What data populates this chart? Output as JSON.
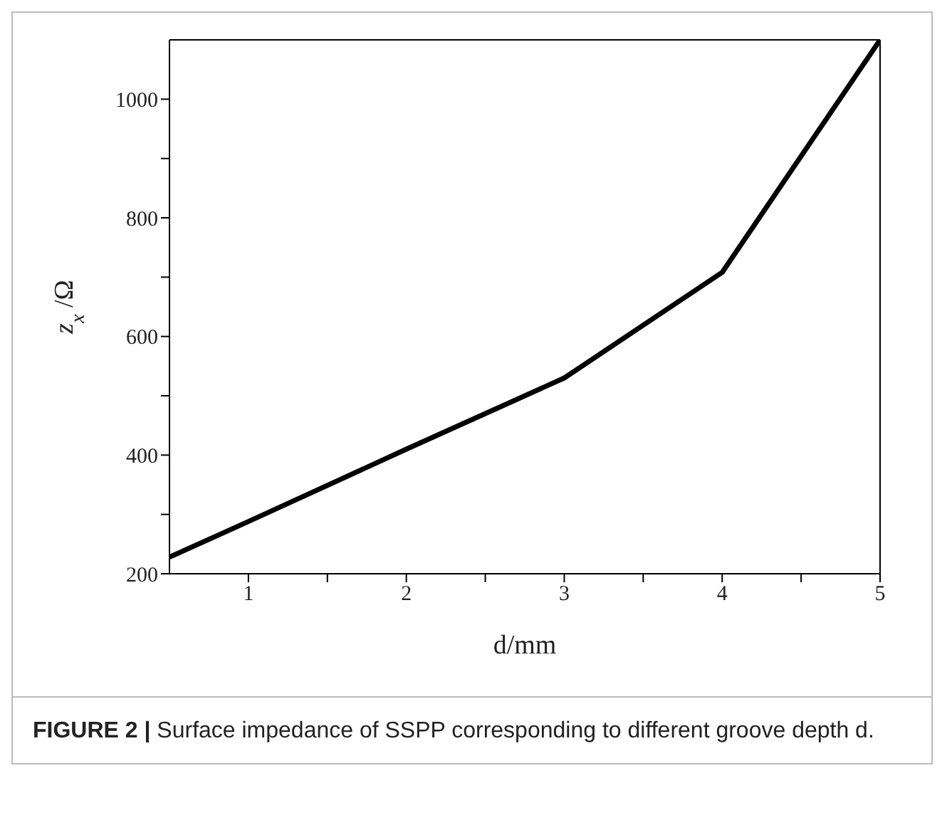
{
  "chart_data": {
    "type": "line",
    "xlabel": "d/mm",
    "ylabel": "z$_{x}$ /Ω",
    "x": [
      0.5,
      1,
      2,
      3,
      4,
      5
    ],
    "series": [
      {
        "color": "#000000",
        "values": [
          228,
          288,
          410,
          530,
          708,
          1100
        ]
      }
    ],
    "xlim": [
      0.5,
      5
    ],
    "xticks": [
      1,
      {
        "value": 1.5,
        "label": null
      },
      2,
      {
        "value": 2.5,
        "label": null
      },
      3,
      {
        "value": 3.5,
        "label": null
      },
      4,
      {
        "value": 4.5,
        "label": null
      },
      5
    ],
    "ylim": [
      200,
      1100
    ],
    "yticks": [
      200,
      {
        "value": 300,
        "label": null
      },
      400,
      {
        "value": 500,
        "label": null
      },
      600,
      {
        "value": 700,
        "label": null
      },
      800,
      {
        "value": 900,
        "label": null
      },
      1000
    ],
    "marker": "none",
    "line_style": "solid",
    "annotations": [
      "FIGURE 2 | Surface impedance of SSPP corresponding to different groove depth d."
    ]
  }
}
